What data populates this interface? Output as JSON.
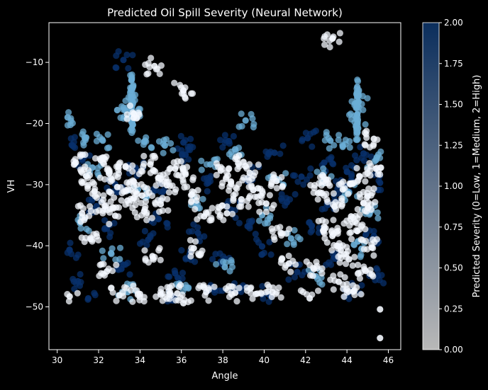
{
  "chart_data": {
    "type": "scatter",
    "title": "Predicted Oil Spill Severity (Neural Network)",
    "xlabel": "Angle",
    "ylabel": "VH",
    "xlim": [
      29.6,
      46.6
    ],
    "ylim": [
      -57,
      -3.5
    ],
    "xticks": [
      30,
      32,
      34,
      36,
      38,
      40,
      42,
      44,
      46
    ],
    "yticks": [
      -10,
      -20,
      -30,
      -40,
      -50
    ],
    "grid": false,
    "background": "#000000",
    "colorbar": {
      "label": "Predicted Severity (0=Low, 1=Medium, 2=High)",
      "range": [
        0,
        2
      ],
      "ticks": [
        "0.00",
        "0.25",
        "0.50",
        "0.75",
        "1.00",
        "1.25",
        "1.50",
        "1.75",
        "2.00"
      ],
      "colormap": [
        "#b8b8b8",
        "#0b2e5c"
      ]
    },
    "series": [
      {
        "class": 1,
        "color": "#6baed6",
        "points": [
          [
            33.6,
            -12.8
          ],
          [
            33.6,
            -14.2
          ],
          [
            33.6,
            -15.8
          ],
          [
            33.6,
            -17.5
          ],
          [
            33.6,
            -19.2
          ],
          [
            33.6,
            -20.8
          ],
          [
            33.65,
            -16.5
          ],
          [
            33.65,
            -18.5
          ],
          [
            44.5,
            -14
          ],
          [
            44.5,
            -15.5
          ],
          [
            44.5,
            -17
          ],
          [
            44.5,
            -18.5
          ],
          [
            44.5,
            -20
          ],
          [
            44.5,
            -21.5
          ],
          [
            44.45,
            -19
          ],
          [
            44.55,
            -16.5
          ],
          [
            32.9,
            -17.8
          ],
          [
            34.2,
            -23
          ],
          [
            38.6,
            -24.2
          ],
          [
            39.1,
            -19.5
          ],
          [
            31.4,
            -22.3
          ],
          [
            32.2,
            -22.8
          ],
          [
            35.2,
            -23.6
          ],
          [
            43.2,
            -22.8
          ],
          [
            43.8,
            -23.7
          ],
          [
            30.5,
            -19
          ],
          [
            31.7,
            -27.2
          ],
          [
            33.9,
            -30.8
          ],
          [
            36.7,
            -33
          ],
          [
            39.9,
            -35
          ],
          [
            42.8,
            -28.5
          ],
          [
            44.1,
            -31.3
          ],
          [
            45.4,
            -26
          ],
          [
            32.6,
            -41.2
          ],
          [
            35.9,
            -46.2
          ],
          [
            41.3,
            -38.8
          ],
          [
            44.7,
            -40.5
          ],
          [
            37.4,
            -26.7
          ],
          [
            38.1,
            -43.5
          ],
          [
            31.1,
            -36.3
          ],
          [
            33.4,
            -47.6
          ],
          [
            40.6,
            -29.1
          ],
          [
            42.5,
            -45
          ],
          [
            45.1,
            -34.7
          ]
        ]
      },
      {
        "class": 2,
        "color": "#08306b",
        "points": [
          [
            30.7,
            -23.5
          ],
          [
            31.2,
            -25.8
          ],
          [
            31.9,
            -33.5
          ],
          [
            32.4,
            -37.2
          ],
          [
            33.1,
            -43.8
          ],
          [
            33.8,
            -27.5
          ],
          [
            34.4,
            -39
          ],
          [
            35.1,
            -31.2
          ],
          [
            35.7,
            -44.5
          ],
          [
            36.2,
            -25.1
          ],
          [
            36.8,
            -37.9
          ],
          [
            37.3,
            -29.7
          ],
          [
            37.9,
            -42.6
          ],
          [
            38.4,
            -34.1
          ],
          [
            38.9,
            -46.8
          ],
          [
            39.4,
            -28.2
          ],
          [
            39.9,
            -40.1
          ],
          [
            40.5,
            -24.8
          ],
          [
            41.1,
            -32.9
          ],
          [
            41.6,
            -44.3
          ],
          [
            42.3,
            -36.7
          ],
          [
            42.9,
            -26.4
          ],
          [
            43.4,
            -41.9
          ],
          [
            43.9,
            -30.2
          ],
          [
            44.3,
            -47.3
          ],
          [
            44.8,
            -24.9
          ],
          [
            45.3,
            -38.4
          ],
          [
            45.6,
            -29.7
          ],
          [
            31.5,
            -48.6
          ],
          [
            35.5,
            -48.9
          ],
          [
            40.2,
            -47.9
          ],
          [
            43.1,
            -33.3
          ],
          [
            36.4,
            -41.4
          ],
          [
            32.8,
            -29.9
          ],
          [
            34.9,
            -35.6
          ],
          [
            30.6,
            -40.7
          ],
          [
            37.6,
            -47.2
          ],
          [
            41.8,
            -28.7
          ],
          [
            45.5,
            -44.9
          ],
          [
            39.2,
            -36.8
          ],
          [
            44,
            -27.9
          ],
          [
            33.2,
            -9.6
          ],
          [
            42.1,
            -22.4
          ],
          [
            38.3,
            -22.9
          ],
          [
            36.1,
            -23.1
          ],
          [
            31,
            -45.8
          ]
        ]
      },
      {
        "class": 0,
        "color": "#f4f8ff",
        "points": [
          [
            32.1,
            -26
          ],
          [
            32.5,
            -28.2
          ],
          [
            32.9,
            -30.4
          ],
          [
            33.3,
            -27.1
          ],
          [
            33.7,
            -29.5
          ],
          [
            34.1,
            -31.8
          ],
          [
            34.5,
            -26.7
          ],
          [
            34.9,
            -28.9
          ],
          [
            35.3,
            -30.1
          ],
          [
            35.7,
            -27.4
          ],
          [
            32.3,
            -33.5
          ],
          [
            32.8,
            -35.1
          ],
          [
            33.4,
            -32.6
          ],
          [
            34.2,
            -34.4
          ],
          [
            35,
            -33.2
          ],
          [
            31.4,
            -28.6
          ],
          [
            31.8,
            -31.1
          ],
          [
            30.9,
            -26.4
          ],
          [
            36.2,
            -28.3
          ],
          [
            36.5,
            -31.6
          ],
          [
            37.9,
            -27.7
          ],
          [
            38.4,
            -29.9
          ],
          [
            38.9,
            -32.4
          ],
          [
            39.3,
            -28.1
          ],
          [
            39.7,
            -30.6
          ],
          [
            40.1,
            -33.1
          ],
          [
            38.2,
            -34.7
          ],
          [
            39,
            -26.3
          ],
          [
            40.6,
            -29.4
          ],
          [
            42.6,
            -31.4
          ],
          [
            43,
            -29.2
          ],
          [
            43.4,
            -33.6
          ],
          [
            43.8,
            -30.8
          ],
          [
            44.2,
            -35.2
          ],
          [
            44.6,
            -28.6
          ],
          [
            45,
            -31.9
          ],
          [
            45.4,
            -27.4
          ],
          [
            42.9,
            -36.9
          ],
          [
            43.3,
            -38.4
          ],
          [
            43.7,
            -40.7
          ],
          [
            44.1,
            -42.2
          ],
          [
            44.5,
            -37.6
          ],
          [
            44.9,
            -44.1
          ],
          [
            43.6,
            -45.9
          ],
          [
            44.3,
            -47.5
          ],
          [
            45.2,
            -40.3
          ],
          [
            42.4,
            -43.8
          ],
          [
            33,
            -48.1
          ],
          [
            34,
            -47.9
          ],
          [
            35,
            -48
          ],
          [
            35.8,
            -47.8
          ],
          [
            37.2,
            -47.6
          ],
          [
            38.6,
            -47.7
          ],
          [
            39.6,
            -47.9
          ],
          [
            40.4,
            -47.6
          ],
          [
            36.6,
            -40.4
          ],
          [
            37.1,
            -35.2
          ],
          [
            31.6,
            -38.9
          ],
          [
            32.4,
            -44.2
          ],
          [
            34.6,
            -41.7
          ],
          [
            40.8,
            -37.9
          ],
          [
            41.2,
            -42.9
          ],
          [
            34.7,
            -10.6
          ],
          [
            43.3,
            -6.1
          ],
          [
            36.1,
            -14.6
          ],
          [
            45.6,
            -50.4
          ],
          [
            45.6,
            -55.1
          ],
          [
            36.1,
            -49.4
          ],
          [
            33.7,
            -18.4
          ],
          [
            30.6,
            -48.3
          ],
          [
            42.2,
            -48.6
          ],
          [
            45.3,
            -22.5
          ],
          [
            44.8,
            -33
          ],
          [
            31.2,
            -34.7
          ]
        ]
      }
    ]
  }
}
